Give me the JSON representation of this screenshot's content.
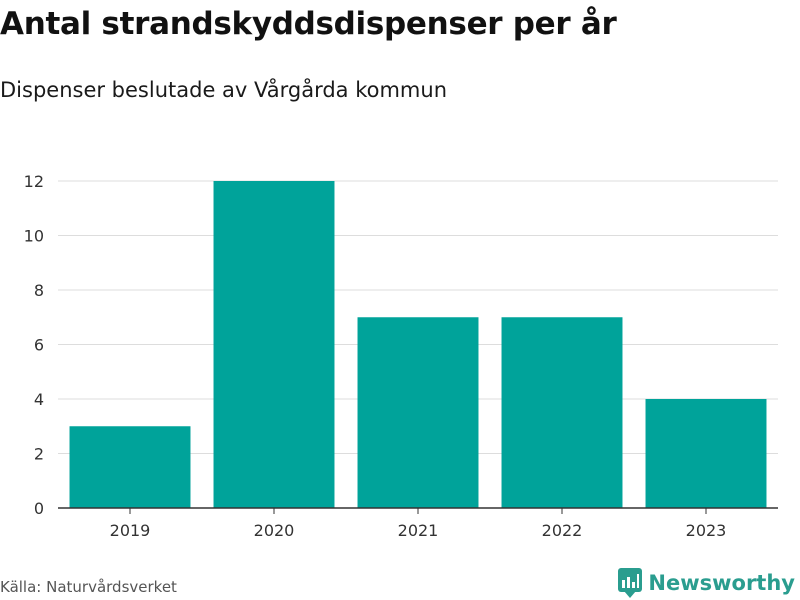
{
  "title": "Antal strandskyddsdispenser per år",
  "subtitle": "Dispenser beslutade av Vårgårda kommun",
  "source": "Källa: Naturvårdsverket",
  "brand": {
    "name": "Newsworthy",
    "color": "#2a9d8f",
    "icon": "newsworthy-logo-icon"
  },
  "colors": {
    "bar": "#00a39a",
    "grid": "#dddddd",
    "axis": "#333333",
    "tick_text": "#333333"
  },
  "chart_data": {
    "type": "bar",
    "title": "Antal strandskyddsdispenser per år",
    "xlabel": "",
    "ylabel": "",
    "categories": [
      "2019",
      "2020",
      "2021",
      "2022",
      "2023"
    ],
    "values": [
      3,
      12,
      7,
      7,
      4
    ],
    "ylim": [
      0,
      12
    ],
    "yticks": [
      0,
      2,
      4,
      6,
      8,
      10,
      12
    ],
    "grid": true,
    "legend": "none"
  }
}
